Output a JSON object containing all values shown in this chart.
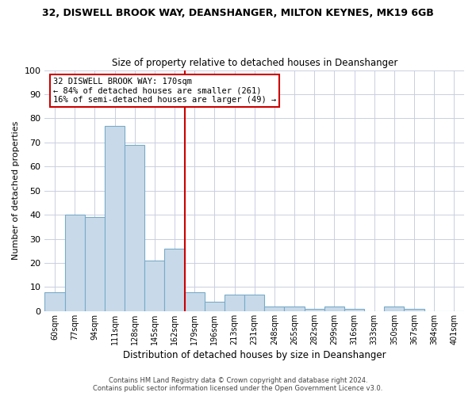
{
  "title": "32, DISWELL BROOK WAY, DEANSHANGER, MILTON KEYNES, MK19 6GB",
  "subtitle": "Size of property relative to detached houses in Deanshanger",
  "xlabel": "Distribution of detached houses by size in Deanshanger",
  "ylabel": "Number of detached properties",
  "footer_line1": "Contains HM Land Registry data © Crown copyright and database right 2024.",
  "footer_line2": "Contains public sector information licensed under the Open Government Licence v3.0.",
  "bin_labels": [
    "60sqm",
    "77sqm",
    "94sqm",
    "111sqm",
    "128sqm",
    "145sqm",
    "162sqm",
    "179sqm",
    "196sqm",
    "213sqm",
    "231sqm",
    "248sqm",
    "265sqm",
    "282sqm",
    "299sqm",
    "316sqm",
    "333sqm",
    "350sqm",
    "367sqm",
    "384sqm",
    "401sqm"
  ],
  "bar_values": [
    8,
    40,
    39,
    77,
    69,
    21,
    26,
    8,
    4,
    7,
    7,
    2,
    2,
    1,
    2,
    1,
    0,
    2,
    1,
    0,
    0
  ],
  "bar_color": "#c8daea",
  "bar_edge_color": "#7aaac8",
  "vline_x": 7,
  "vline_color": "#cc0000",
  "annotation_line1": "32 DISWELL BROOK WAY: 170sqm",
  "annotation_line2": "← 84% of detached houses are smaller (261)",
  "annotation_line3": "16% of semi-detached houses are larger (49) →",
  "annotation_box_color": "#ffffff",
  "annotation_box_edge": "#cc0000",
  "ylim": [
    0,
    100
  ],
  "yticks": [
    0,
    10,
    20,
    30,
    40,
    50,
    60,
    70,
    80,
    90,
    100
  ],
  "background_color": "#ffffff",
  "grid_color": "#c8cfe0"
}
